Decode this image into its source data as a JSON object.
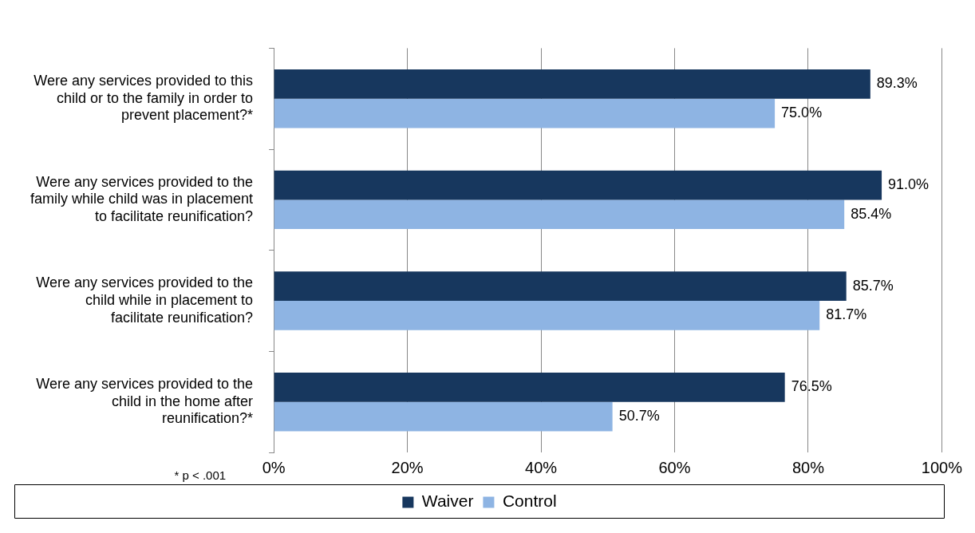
{
  "chart_data": {
    "type": "bar",
    "orientation": "horizontal",
    "categories": [
      "Were any services provided to this child or to the family in order to prevent placement?*",
      "Were any services provided to the family while child was in placement to facilitate reunification?",
      "Were any services provided to the child while in placement to facilitate reunification?",
      "Were any services provided to the child in the home after reunification?*"
    ],
    "series": [
      {
        "name": "Waiver",
        "color": "#17375e",
        "values": [
          89.3,
          91.0,
          85.7,
          76.5
        ],
        "value_labels": [
          "89.3%",
          "91.0%",
          "85.7%",
          "76.5%"
        ]
      },
      {
        "name": "Control",
        "color": "#8eb4e3",
        "values": [
          75.0,
          85.4,
          81.7,
          50.7
        ],
        "value_labels": [
          "75.0%",
          "85.4%",
          "81.7%",
          "50.7%"
        ]
      }
    ],
    "xlim": [
      0,
      100
    ],
    "xticks": [
      {
        "value": 0,
        "label": "0%"
      },
      {
        "value": 20,
        "label": "20%"
      },
      {
        "value": 40,
        "label": "40%"
      },
      {
        "value": 60,
        "label": "60%"
      },
      {
        "value": 80,
        "label": "80%"
      },
      {
        "value": 100,
        "label": "100%"
      }
    ],
    "grid": "x",
    "legend": "bottom",
    "annotations": [
      "* p < .001"
    ]
  }
}
